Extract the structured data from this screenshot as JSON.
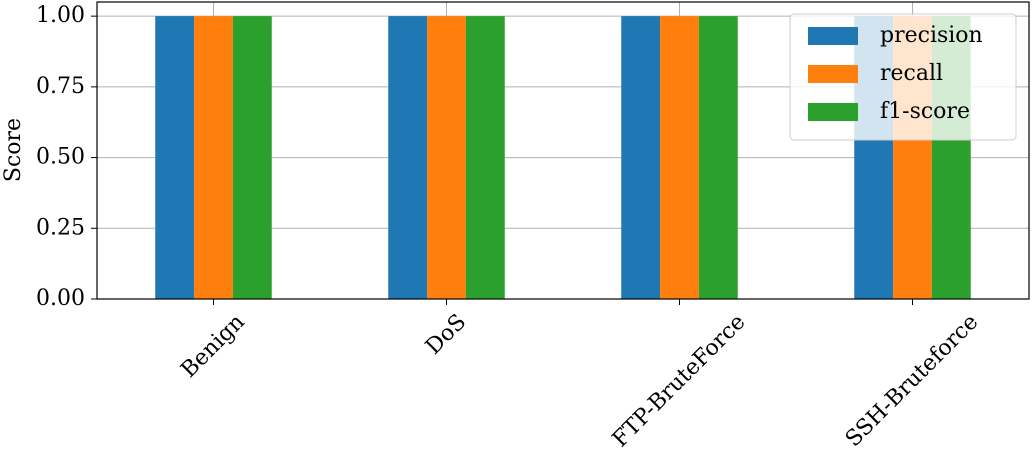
{
  "chart_data": {
    "type": "bar",
    "y_label": "Score",
    "categories": [
      "Benign",
      "DoS",
      "FTP-BruteForce",
      "SSH-Bruteforce"
    ],
    "series": [
      {
        "name": "precision",
        "color": "#1f77b4",
        "values": [
          1.0,
          1.0,
          1.0,
          1.0
        ]
      },
      {
        "name": "recall",
        "color": "#ff7f0e",
        "values": [
          1.0,
          1.0,
          1.0,
          1.0
        ]
      },
      {
        "name": "f1-score",
        "color": "#2ca02c",
        "values": [
          1.0,
          1.0,
          1.0,
          1.0
        ]
      }
    ],
    "ylim": [
      0,
      1.05
    ],
    "yticks": [
      {
        "value": 0,
        "label": "0.00"
      },
      {
        "value": 0.25,
        "label": "0.25"
      },
      {
        "value": 0.5,
        "label": "0.50"
      },
      {
        "value": 0.75,
        "label": "0.75"
      },
      {
        "value": 1,
        "label": "1.00"
      }
    ],
    "grid": true,
    "legend": "upper right"
  }
}
